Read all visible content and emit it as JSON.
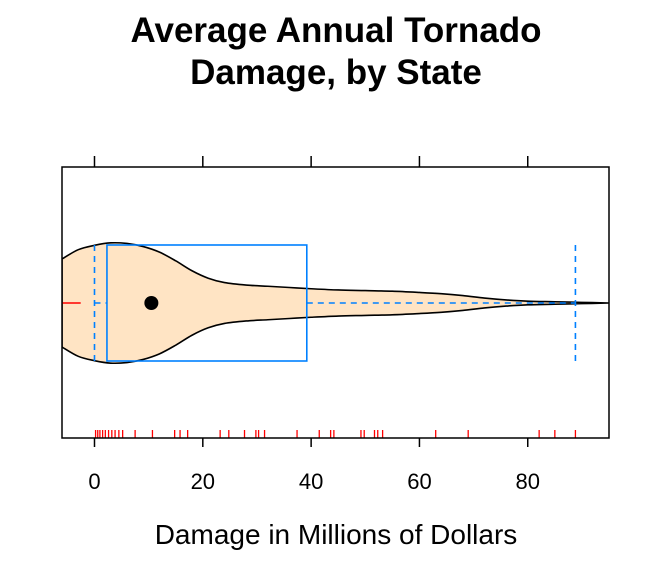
{
  "chart_data": {
    "type": "violin-box",
    "title_lines": [
      "Average Annual Tornado",
      "Damage, by State"
    ],
    "xlabel": "Damage in Millions of Dollars",
    "ylabel": "",
    "xlim": [
      -6,
      95
    ],
    "x_ticks": [
      0,
      20,
      40,
      60,
      80
    ],
    "grid": false,
    "legend": "none",
    "box": {
      "q1": 2.3,
      "median": 10.5,
      "q3": 39.2,
      "whisker_low": 0,
      "whisker_high": 88.8,
      "outlier_low": -5.5
    },
    "rug": [
      0.2,
      0.6,
      1.0,
      1.5,
      2.0,
      2.6,
      3.2,
      3.8,
      4.5,
      5.2,
      7.5,
      10.7,
      14.8,
      15.8,
      17.2,
      23.2,
      24.8,
      27.7,
      29.8,
      30.3,
      31.4,
      37.4,
      41.5,
      43.6,
      44.2,
      49.2,
      49.8,
      51.7,
      52.3,
      53.2,
      63.0,
      69.0,
      82.1,
      85.0,
      88.8
    ],
    "violin_profile": [
      [
        -6,
        0.71
      ],
      [
        -3,
        0.86
      ],
      [
        0,
        0.93
      ],
      [
        3,
        0.97
      ],
      [
        6,
        0.96
      ],
      [
        9,
        0.91
      ],
      [
        12,
        0.82
      ],
      [
        15,
        0.68
      ],
      [
        18,
        0.52
      ],
      [
        21,
        0.4
      ],
      [
        24,
        0.33
      ],
      [
        28,
        0.29
      ],
      [
        32,
        0.27
      ],
      [
        36,
        0.25
      ],
      [
        40,
        0.23
      ],
      [
        45,
        0.21
      ],
      [
        50,
        0.2
      ],
      [
        55,
        0.19
      ],
      [
        60,
        0.17
      ],
      [
        64,
        0.15
      ],
      [
        68,
        0.12
      ],
      [
        72,
        0.08
      ],
      [
        76,
        0.05
      ],
      [
        80,
        0.03
      ],
      [
        85,
        0.02
      ],
      [
        90,
        0.01
      ],
      [
        95,
        0.0
      ]
    ],
    "colors": {
      "violin_fill": "#FFE4C4",
      "violin_stroke": "#000000",
      "box": "#0080FF",
      "rug": "#FF0000",
      "outlier": "#FF0000",
      "median_dot": "#000000",
      "frame": "#000000"
    }
  }
}
